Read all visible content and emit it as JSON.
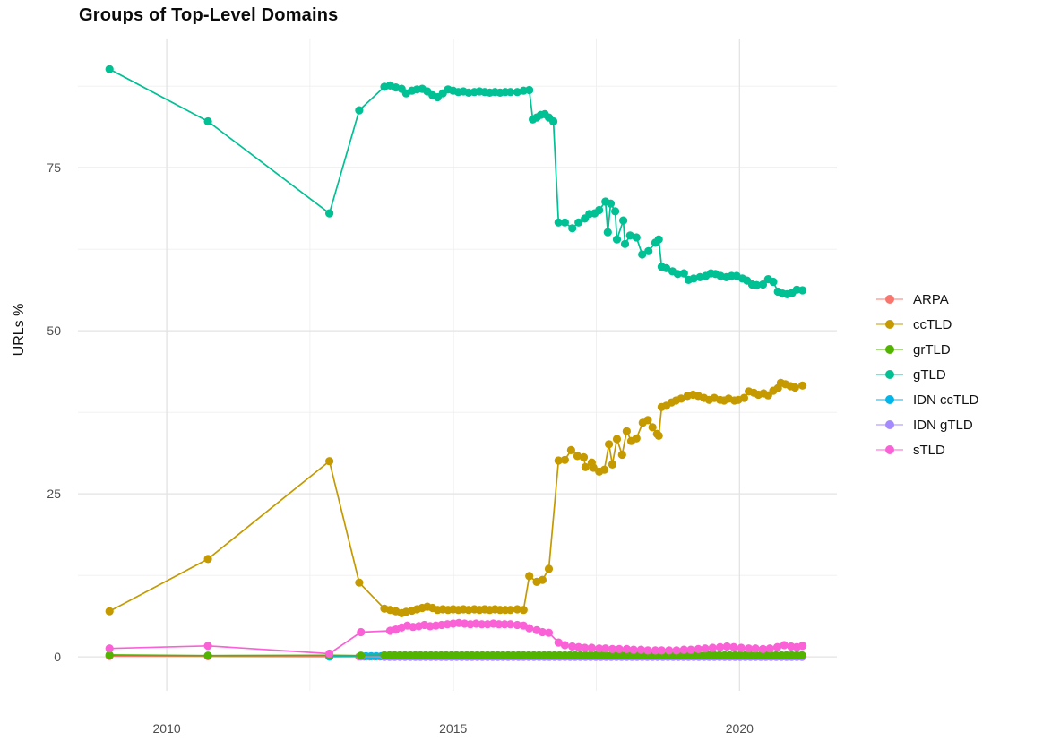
{
  "title": "Groups of Top-Level Domains",
  "y_axis": {
    "label": "URLs %"
  },
  "legend": {
    "position": "right",
    "items": [
      "ARPA",
      "ccTLD",
      "grTLD",
      "gTLD",
      "IDN ccTLD",
      "IDN gTLD",
      "sTLD"
    ]
  },
  "chart_data": {
    "type": "line",
    "title": "Groups of Top-Level Domains",
    "xlabel": "",
    "ylabel": "URLs %",
    "xlim": [
      2008.45,
      2021.7
    ],
    "ylim": [
      -5.2,
      94.8
    ],
    "x_major": [
      2010,
      2015,
      2020
    ],
    "x_minor": [
      2012.5,
      2017.5
    ],
    "y_major": [
      0,
      25,
      50,
      75
    ],
    "y_minor": [
      12.5,
      37.5,
      62.5,
      87.5
    ],
    "grid": "on",
    "legend_position": "right",
    "colors": {
      "major_grid": "#e3e3e3",
      "minor_grid": "#efefef",
      "tick_text": "#4d4d4d"
    },
    "draw_order": [
      "ARPA",
      "IDN ccTLD",
      "IDN gTLD",
      "grTLD",
      "ccTLD",
      "gTLD",
      "sTLD"
    ],
    "series": [
      {
        "name": "ARPA",
        "color": "#F8766D",
        "points": [
          [
            2009.0,
            0.15
          ],
          [
            2010.72,
            0.1
          ],
          [
            2012.84,
            0.05
          ]
        ],
        "flat": {
          "from": 2013.36,
          "to": 2021.1,
          "step": 0.09,
          "value": 0.05
        }
      },
      {
        "name": "ccTLD",
        "color": "#C49A00",
        "points": [
          [
            2009.0,
            7.0
          ],
          [
            2010.72,
            15.0
          ],
          [
            2012.84,
            30.0
          ],
          [
            2013.36,
            11.4
          ],
          [
            2013.8,
            7.4
          ],
          [
            2013.9,
            7.2
          ],
          [
            2014.0,
            7.0
          ],
          [
            2014.1,
            6.7
          ],
          [
            2014.18,
            6.9
          ],
          [
            2014.28,
            7.1
          ],
          [
            2014.37,
            7.3
          ],
          [
            2014.46,
            7.5
          ],
          [
            2014.55,
            7.7
          ],
          [
            2014.64,
            7.5
          ],
          [
            2014.73,
            7.2
          ],
          [
            2014.82,
            7.3
          ],
          [
            2014.91,
            7.2
          ],
          [
            2015.0,
            7.3
          ],
          [
            2015.09,
            7.2
          ],
          [
            2015.18,
            7.3
          ],
          [
            2015.27,
            7.2
          ],
          [
            2015.37,
            7.3
          ],
          [
            2015.46,
            7.2
          ],
          [
            2015.55,
            7.3
          ],
          [
            2015.64,
            7.2
          ],
          [
            2015.73,
            7.3
          ],
          [
            2015.82,
            7.2
          ],
          [
            2015.91,
            7.2
          ],
          [
            2016.0,
            7.2
          ],
          [
            2016.12,
            7.3
          ],
          [
            2016.23,
            7.2
          ],
          [
            2016.33,
            12.4
          ],
          [
            2016.46,
            11.5
          ],
          [
            2016.56,
            11.8
          ],
          [
            2016.67,
            13.5
          ],
          [
            2016.84,
            30.1
          ],
          [
            2016.95,
            30.2
          ],
          [
            2017.06,
            31.7
          ],
          [
            2017.17,
            30.8
          ],
          [
            2017.28,
            30.6
          ],
          [
            2017.31,
            29.1
          ],
          [
            2017.42,
            29.8
          ],
          [
            2017.45,
            29.0
          ],
          [
            2017.55,
            28.4
          ],
          [
            2017.64,
            28.7
          ],
          [
            2017.72,
            32.6
          ],
          [
            2017.78,
            29.5
          ],
          [
            2017.86,
            33.4
          ],
          [
            2017.95,
            31.0
          ],
          [
            2018.03,
            34.6
          ],
          [
            2018.11,
            33.1
          ],
          [
            2018.2,
            33.5
          ],
          [
            2018.31,
            35.9
          ],
          [
            2018.4,
            36.3
          ],
          [
            2018.48,
            35.2
          ],
          [
            2018.56,
            34.2
          ],
          [
            2018.59,
            33.9
          ],
          [
            2018.64,
            38.3
          ],
          [
            2018.72,
            38.5
          ],
          [
            2018.81,
            39.0
          ],
          [
            2018.89,
            39.3
          ],
          [
            2018.98,
            39.6
          ],
          [
            2019.09,
            40.0
          ],
          [
            2019.19,
            40.2
          ],
          [
            2019.28,
            40.0
          ],
          [
            2019.38,
            39.7
          ],
          [
            2019.47,
            39.4
          ],
          [
            2019.56,
            39.7
          ],
          [
            2019.66,
            39.4
          ],
          [
            2019.73,
            39.3
          ],
          [
            2019.81,
            39.6
          ],
          [
            2019.91,
            39.3
          ],
          [
            2019.98,
            39.4
          ],
          [
            2020.08,
            39.7
          ],
          [
            2020.16,
            40.7
          ],
          [
            2020.25,
            40.5
          ],
          [
            2020.33,
            40.2
          ],
          [
            2020.42,
            40.4
          ],
          [
            2020.5,
            40.1
          ],
          [
            2020.59,
            40.8
          ],
          [
            2020.67,
            41.2
          ],
          [
            2020.72,
            42.0
          ],
          [
            2020.8,
            41.8
          ],
          [
            2020.89,
            41.5
          ],
          [
            2020.97,
            41.3
          ],
          [
            2021.1,
            41.6
          ]
        ]
      },
      {
        "name": "grTLD",
        "color": "#53B400",
        "points": [
          [
            2009.0,
            0.3
          ],
          [
            2010.72,
            0.2
          ],
          [
            2012.84,
            0.25
          ],
          [
            2013.39,
            0.2
          ]
        ],
        "flat": {
          "from": 2013.8,
          "to": 2021.1,
          "step": 0.09,
          "value": 0.25
        }
      },
      {
        "name": "gTLD",
        "color": "#00C094",
        "points": [
          [
            2009.0,
            90.1
          ],
          [
            2010.72,
            82.1
          ],
          [
            2012.84,
            68.0
          ],
          [
            2013.36,
            83.8
          ],
          [
            2013.8,
            87.4
          ],
          [
            2013.9,
            87.6
          ],
          [
            2014.0,
            87.3
          ],
          [
            2014.1,
            87.1
          ],
          [
            2014.18,
            86.4
          ],
          [
            2014.28,
            86.8
          ],
          [
            2014.37,
            87.0
          ],
          [
            2014.46,
            87.1
          ],
          [
            2014.55,
            86.7
          ],
          [
            2014.64,
            86.1
          ],
          [
            2014.73,
            85.8
          ],
          [
            2014.82,
            86.4
          ],
          [
            2014.91,
            87.0
          ],
          [
            2015.0,
            86.8
          ],
          [
            2015.09,
            86.6
          ],
          [
            2015.18,
            86.7
          ],
          [
            2015.27,
            86.5
          ],
          [
            2015.37,
            86.6
          ],
          [
            2015.46,
            86.7
          ],
          [
            2015.55,
            86.6
          ],
          [
            2015.64,
            86.5
          ],
          [
            2015.73,
            86.6
          ],
          [
            2015.82,
            86.5
          ],
          [
            2015.91,
            86.6
          ],
          [
            2016.0,
            86.6
          ],
          [
            2016.12,
            86.6
          ],
          [
            2016.23,
            86.8
          ],
          [
            2016.33,
            86.9
          ],
          [
            2016.39,
            82.4
          ],
          [
            2016.46,
            82.7
          ],
          [
            2016.53,
            83.1
          ],
          [
            2016.6,
            83.2
          ],
          [
            2016.67,
            82.7
          ],
          [
            2016.75,
            82.1
          ],
          [
            2016.84,
            66.6
          ],
          [
            2016.95,
            66.6
          ],
          [
            2017.08,
            65.7
          ],
          [
            2017.19,
            66.6
          ],
          [
            2017.3,
            67.2
          ],
          [
            2017.38,
            67.9
          ],
          [
            2017.47,
            68.0
          ],
          [
            2017.55,
            68.5
          ],
          [
            2017.66,
            69.8
          ],
          [
            2017.7,
            65.1
          ],
          [
            2017.75,
            69.5
          ],
          [
            2017.83,
            68.3
          ],
          [
            2017.86,
            64.0
          ],
          [
            2017.97,
            66.9
          ],
          [
            2018.0,
            63.3
          ],
          [
            2018.09,
            64.6
          ],
          [
            2018.2,
            64.3
          ],
          [
            2018.3,
            61.7
          ],
          [
            2018.41,
            62.2
          ],
          [
            2018.53,
            63.5
          ],
          [
            2018.59,
            64.0
          ],
          [
            2018.64,
            59.8
          ],
          [
            2018.72,
            59.6
          ],
          [
            2018.83,
            59.1
          ],
          [
            2018.92,
            58.7
          ],
          [
            2019.03,
            58.8
          ],
          [
            2019.11,
            57.8
          ],
          [
            2019.2,
            58.0
          ],
          [
            2019.31,
            58.2
          ],
          [
            2019.41,
            58.4
          ],
          [
            2019.5,
            58.8
          ],
          [
            2019.58,
            58.7
          ],
          [
            2019.67,
            58.4
          ],
          [
            2019.77,
            58.2
          ],
          [
            2019.86,
            58.4
          ],
          [
            2019.95,
            58.4
          ],
          [
            2020.05,
            58.0
          ],
          [
            2020.13,
            57.7
          ],
          [
            2020.22,
            57.1
          ],
          [
            2020.3,
            57.0
          ],
          [
            2020.41,
            57.1
          ],
          [
            2020.5,
            57.9
          ],
          [
            2020.59,
            57.5
          ],
          [
            2020.67,
            56.0
          ],
          [
            2020.75,
            55.7
          ],
          [
            2020.83,
            55.6
          ],
          [
            2020.92,
            55.8
          ],
          [
            2021.0,
            56.3
          ],
          [
            2021.1,
            56.2
          ]
        ]
      },
      {
        "name": "IDN ccTLD",
        "color": "#00B6EB",
        "points": [
          [
            2012.84,
            0.05
          ]
        ],
        "flat": {
          "from": 2013.39,
          "to": 2021.1,
          "step": 0.09,
          "value": 0.1
        }
      },
      {
        "name": "IDN gTLD",
        "color": "#A58AFF",
        "points": [
          [
            2013.39,
            0.05
          ]
        ],
        "flat": {
          "from": 2013.8,
          "to": 2021.1,
          "step": 0.09,
          "value": 0.0
        }
      },
      {
        "name": "sTLD",
        "color": "#FB61D7",
        "points": [
          [
            2009.0,
            1.3
          ],
          [
            2010.72,
            1.7
          ],
          [
            2012.84,
            0.5
          ],
          [
            2013.39,
            3.8
          ],
          [
            2013.9,
            4.0
          ],
          [
            2014.0,
            4.2
          ],
          [
            2014.1,
            4.5
          ],
          [
            2014.2,
            4.8
          ],
          [
            2014.3,
            4.6
          ],
          [
            2014.4,
            4.7
          ],
          [
            2014.5,
            4.9
          ],
          [
            2014.6,
            4.7
          ],
          [
            2014.7,
            4.8
          ],
          [
            2014.8,
            4.9
          ],
          [
            2014.9,
            5.0
          ],
          [
            2015.0,
            5.1
          ],
          [
            2015.1,
            5.2
          ],
          [
            2015.2,
            5.1
          ],
          [
            2015.3,
            5.0
          ],
          [
            2015.4,
            5.1
          ],
          [
            2015.5,
            5.0
          ],
          [
            2015.6,
            5.0
          ],
          [
            2015.7,
            5.1
          ],
          [
            2015.8,
            5.0
          ],
          [
            2015.9,
            5.0
          ],
          [
            2016.0,
            5.0
          ],
          [
            2016.12,
            4.9
          ],
          [
            2016.23,
            4.8
          ],
          [
            2016.33,
            4.4
          ],
          [
            2016.46,
            4.1
          ],
          [
            2016.56,
            3.8
          ],
          [
            2016.67,
            3.7
          ],
          [
            2016.84,
            2.2
          ],
          [
            2016.95,
            1.8
          ],
          [
            2017.08,
            1.6
          ],
          [
            2017.19,
            1.5
          ],
          [
            2017.3,
            1.4
          ],
          [
            2017.42,
            1.4
          ],
          [
            2017.55,
            1.3
          ],
          [
            2017.66,
            1.3
          ],
          [
            2017.78,
            1.2
          ],
          [
            2017.9,
            1.2
          ],
          [
            2018.03,
            1.2
          ],
          [
            2018.15,
            1.1
          ],
          [
            2018.28,
            1.1
          ],
          [
            2018.4,
            1.0
          ],
          [
            2018.53,
            1.0
          ],
          [
            2018.64,
            1.0
          ],
          [
            2018.77,
            1.0
          ],
          [
            2018.9,
            1.0
          ],
          [
            2019.03,
            1.1
          ],
          [
            2019.15,
            1.1
          ],
          [
            2019.28,
            1.2
          ],
          [
            2019.4,
            1.3
          ],
          [
            2019.53,
            1.4
          ],
          [
            2019.66,
            1.5
          ],
          [
            2019.78,
            1.6
          ],
          [
            2019.9,
            1.5
          ],
          [
            2020.03,
            1.4
          ],
          [
            2020.16,
            1.3
          ],
          [
            2020.28,
            1.3
          ],
          [
            2020.41,
            1.2
          ],
          [
            2020.53,
            1.3
          ],
          [
            2020.66,
            1.5
          ],
          [
            2020.78,
            1.8
          ],
          [
            2020.9,
            1.6
          ],
          [
            2021.0,
            1.5
          ],
          [
            2021.1,
            1.7
          ]
        ]
      }
    ]
  }
}
